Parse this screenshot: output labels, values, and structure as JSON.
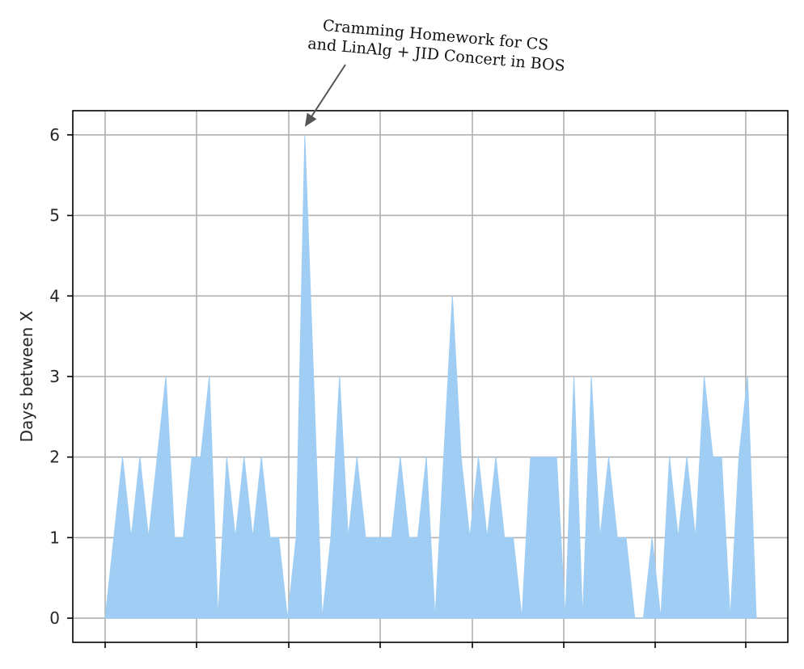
{
  "chart_data": {
    "type": "area",
    "title": "",
    "xlabel": "",
    "ylabel": "Days between X",
    "x_ticks": [
      "",
      "",
      "",
      "",
      "",
      "",
      "",
      ""
    ],
    "y_ticks": [
      "0",
      "1",
      "2",
      "3",
      "4",
      "5",
      "6"
    ],
    "ylim": [
      -0.3,
      6.3
    ],
    "grid": true,
    "colors": {
      "fill": "#9fcdf3",
      "grid": "#b0b0b0",
      "axis": "#000000",
      "arrow": "#555555"
    },
    "series": [
      {
        "values": [
          0,
          1,
          2,
          1,
          2,
          1,
          2,
          3,
          1,
          1,
          2,
          2,
          3,
          0,
          2,
          1,
          2,
          1,
          2,
          1,
          1,
          0,
          1,
          6,
          3,
          0,
          1,
          3,
          1,
          2,
          1,
          1,
          1,
          1,
          2,
          1,
          1,
          2,
          0,
          2,
          4,
          2,
          1,
          2,
          1,
          2,
          1,
          1,
          0,
          2,
          2,
          2,
          2,
          0,
          3,
          0,
          3,
          1,
          2,
          1,
          1,
          0,
          0,
          1,
          0,
          2,
          1,
          2,
          1,
          3,
          2,
          2,
          0,
          2,
          3,
          0
        ]
      }
    ],
    "annotations": [
      {
        "text_lines": [
          "Cramming Homework for CS",
          "and LinAlg + JID Concert in BOS"
        ],
        "point_index": 23,
        "value": 6
      }
    ]
  }
}
